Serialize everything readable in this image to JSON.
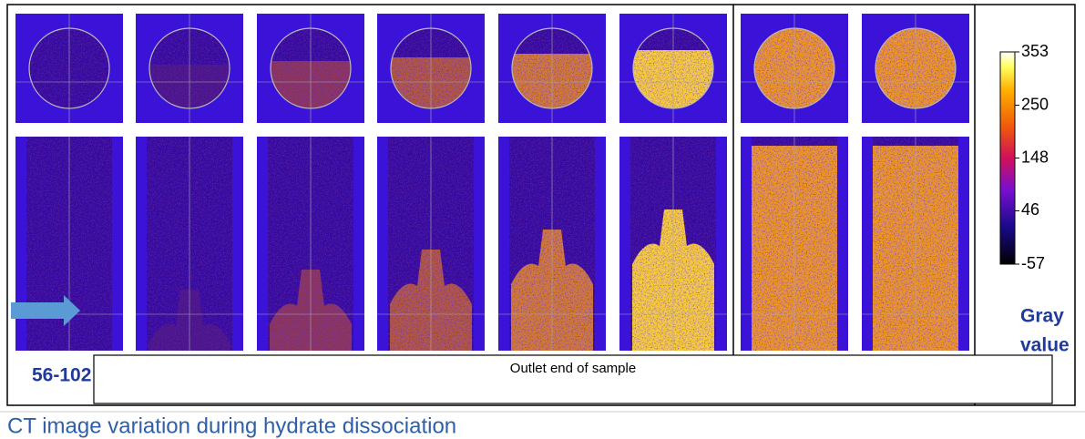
{
  "label": "56-102",
  "caption": "Outlet end of sample",
  "colorbar": {
    "title_lines": [
      "Gray",
      "value"
    ],
    "lim": [
      -57,
      353
    ],
    "ticks": [
      353,
      250,
      148,
      46,
      -57
    ]
  },
  "slide_title": "CT image variation during hydrate dissociation"
}
